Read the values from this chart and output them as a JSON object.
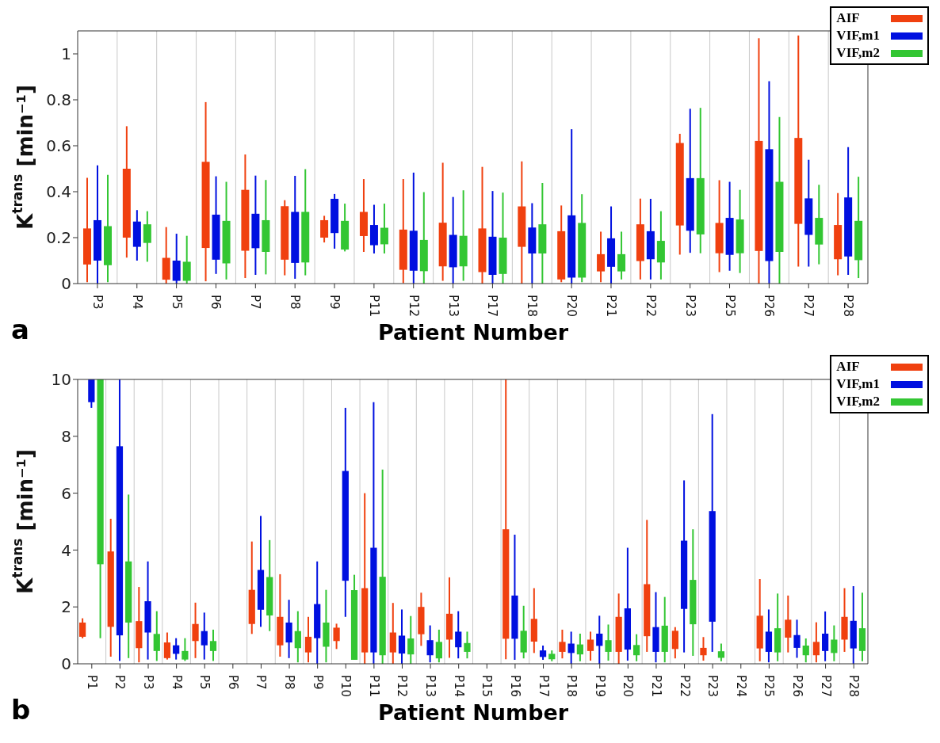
{
  "chart_data": [
    {
      "type": "box",
      "xlabel": "Patient Number",
      "ylabel": "K$^{trans}$ [min⁻¹]",
      "annotations": [
        "a"
      ],
      "legend": "top right",
      "grid": "x",
      "ylim": [
        0,
        1.1
      ],
      "yticks": [
        0,
        0.2,
        0.4,
        0.6,
        0.8,
        1
      ],
      "categories": [
        "P3",
        "P4",
        "P5",
        "P6",
        "P7",
        "P8",
        "P9",
        "P11",
        "P12",
        "P13",
        "P17",
        "P18",
        "P20",
        "P21",
        "P22",
        "P23",
        "P25",
        "P26",
        "P27",
        "P28"
      ],
      "series": [
        {
          "name": "AIF",
          "color": "#f0400f",
          "boxes": [
            {
              "low": 0.006,
              "q1": 0.083,
              "q3": 0.24,
              "high": 0.46
            },
            {
              "low": 0.113,
              "q1": 0.2,
              "q3": 0.5,
              "high": 0.685
            },
            {
              "low": 0,
              "q1": 0.017,
              "q3": 0.112,
              "high": 0.246
            },
            {
              "low": 0.01,
              "q1": 0.155,
              "q3": 0.53,
              "high": 0.79
            },
            {
              "low": 0.024,
              "q1": 0.143,
              "q3": 0.408,
              "high": 0.562
            },
            {
              "low": 0.036,
              "q1": 0.104,
              "q3": 0.337,
              "high": 0.363
            },
            {
              "low": 0.179,
              "q1": 0.2,
              "q3": 0.276,
              "high": 0.295
            },
            {
              "low": 0.138,
              "q1": 0.207,
              "q3": 0.312,
              "high": 0.455
            },
            {
              "low": 0.002,
              "q1": 0.06,
              "q3": 0.235,
              "high": 0.455
            },
            {
              "low": 0.012,
              "q1": 0.075,
              "q3": 0.265,
              "high": 0.526
            },
            {
              "low": 0,
              "q1": 0.05,
              "q3": 0.24,
              "high": 0.508
            },
            {
              "low": 0,
              "q1": 0.16,
              "q3": 0.336,
              "high": 0.532
            },
            {
              "low": 0.006,
              "q1": 0.018,
              "q3": 0.228,
              "high": 0.34
            },
            {
              "low": 0.006,
              "q1": 0.053,
              "q3": 0.128,
              "high": 0.226
            },
            {
              "low": 0.018,
              "q1": 0.098,
              "q3": 0.258,
              "high": 0.37
            },
            {
              "low": 0.126,
              "q1": 0.253,
              "q3": 0.612,
              "high": 0.652
            },
            {
              "low": 0.05,
              "q1": 0.132,
              "q3": 0.264,
              "high": 0.45
            },
            {
              "low": 0,
              "q1": 0.142,
              "q3": 0.621,
              "high": 1.068
            },
            {
              "low": 0.074,
              "q1": 0.26,
              "q3": 0.634,
              "high": 1.08
            },
            {
              "low": 0.036,
              "q1": 0.106,
              "q3": 0.255,
              "high": 0.394
            }
          ]
        },
        {
          "name": "VIF,m1",
          "color": "#0010e0",
          "boxes": [
            {
              "low": 0,
              "q1": 0.1,
              "q3": 0.276,
              "high": 0.515
            },
            {
              "low": 0.1,
              "q1": 0.16,
              "q3": 0.27,
              "high": 0.32
            },
            {
              "low": 0,
              "q1": 0.012,
              "q3": 0.1,
              "high": 0.217
            },
            {
              "low": 0.042,
              "q1": 0.104,
              "q3": 0.3,
              "high": 0.467
            },
            {
              "low": 0.038,
              "q1": 0.154,
              "q3": 0.304,
              "high": 0.47
            },
            {
              "low": 0.021,
              "q1": 0.09,
              "q3": 0.312,
              "high": 0.469
            },
            {
              "low": 0.152,
              "q1": 0.22,
              "q3": 0.369,
              "high": 0.39
            },
            {
              "low": 0.131,
              "q1": 0.167,
              "q3": 0.255,
              "high": 0.343
            },
            {
              "low": 0,
              "q1": 0.056,
              "q3": 0.23,
              "high": 0.483
            },
            {
              "low": 0,
              "q1": 0.071,
              "q3": 0.212,
              "high": 0.377
            },
            {
              "low": 0,
              "q1": 0.038,
              "q3": 0.204,
              "high": 0.403
            },
            {
              "low": 0,
              "q1": 0.131,
              "q3": 0.244,
              "high": 0.35
            },
            {
              "low": 0,
              "q1": 0.026,
              "q3": 0.297,
              "high": 0.672
            },
            {
              "low": 0,
              "q1": 0.073,
              "q3": 0.197,
              "high": 0.336
            },
            {
              "low": 0.018,
              "q1": 0.106,
              "q3": 0.228,
              "high": 0.369
            },
            {
              "low": 0.134,
              "q1": 0.23,
              "q3": 0.459,
              "high": 0.761
            },
            {
              "low": 0.056,
              "q1": 0.125,
              "q3": 0.286,
              "high": 0.443
            },
            {
              "low": 0,
              "q1": 0.098,
              "q3": 0.585,
              "high": 0.881
            },
            {
              "low": 0.074,
              "q1": 0.212,
              "q3": 0.371,
              "high": 0.539
            },
            {
              "low": 0.038,
              "q1": 0.118,
              "q3": 0.375,
              "high": 0.594
            }
          ]
        },
        {
          "name": "VIF,m2",
          "color": "#33c633",
          "boxes": [
            {
              "low": 0.006,
              "q1": 0.08,
              "q3": 0.25,
              "high": 0.473
            },
            {
              "low": 0.095,
              "q1": 0.177,
              "q3": 0.258,
              "high": 0.315
            },
            {
              "low": 0,
              "q1": 0.012,
              "q3": 0.095,
              "high": 0.208
            },
            {
              "low": 0.018,
              "q1": 0.088,
              "q3": 0.273,
              "high": 0.443
            },
            {
              "low": 0.04,
              "q1": 0.138,
              "q3": 0.276,
              "high": 0.451
            },
            {
              "low": 0.036,
              "q1": 0.092,
              "q3": 0.312,
              "high": 0.498
            },
            {
              "low": 0.14,
              "q1": 0.148,
              "q3": 0.273,
              "high": 0.348
            },
            {
              "low": 0.131,
              "q1": 0.171,
              "q3": 0.243,
              "high": 0.348
            },
            {
              "low": 0,
              "q1": 0.054,
              "q3": 0.19,
              "high": 0.398
            },
            {
              "low": 0.012,
              "q1": 0.075,
              "q3": 0.208,
              "high": 0.406
            },
            {
              "low": 0,
              "q1": 0.042,
              "q3": 0.2,
              "high": 0.396
            },
            {
              "low": 0,
              "q1": 0.131,
              "q3": 0.258,
              "high": 0.438
            },
            {
              "low": 0.006,
              "q1": 0.026,
              "q3": 0.264,
              "high": 0.389
            },
            {
              "low": 0.018,
              "q1": 0.053,
              "q3": 0.128,
              "high": 0.226
            },
            {
              "low": 0.018,
              "q1": 0.092,
              "q3": 0.186,
              "high": 0.315
            },
            {
              "low": 0.132,
              "q1": 0.214,
              "q3": 0.459,
              "high": 0.765
            },
            {
              "low": 0.046,
              "q1": 0.132,
              "q3": 0.279,
              "high": 0.408
            },
            {
              "low": 0,
              "q1": 0.138,
              "q3": 0.443,
              "high": 0.725
            },
            {
              "low": 0.084,
              "q1": 0.17,
              "q3": 0.286,
              "high": 0.43
            },
            {
              "low": 0.024,
              "q1": 0.102,
              "q3": 0.273,
              "high": 0.465
            }
          ]
        }
      ]
    },
    {
      "type": "box",
      "xlabel": "Patient Number",
      "ylabel": "K$^{trans}$ [min⁻¹]",
      "annotations": [
        "b"
      ],
      "legend": "top right",
      "grid": "x",
      "ylim": [
        0,
        10
      ],
      "yticks": [
        0,
        2,
        4,
        6,
        8,
        10
      ],
      "categories": [
        "P1",
        "P2",
        "P3",
        "P4",
        "P5",
        "P6",
        "P7",
        "P8",
        "P9",
        "P10",
        "P11",
        "P12",
        "P13",
        "P14",
        "P15",
        "P16",
        "P17",
        "P18",
        "P19",
        "P20",
        "P21",
        "P22",
        "P23",
        "P24",
        "P25",
        "P26",
        "P27",
        "P28"
      ],
      "series": [
        {
          "name": "AIF",
          "color": "#f0400f",
          "boxes": [
            {
              "low": 0.9,
              "q1": 0.95,
              "q3": 1.45,
              "high": 1.6
            },
            {
              "low": 0.25,
              "q1": 1.3,
              "q3": 3.95,
              "high": 5.1
            },
            {
              "low": 0.05,
              "q1": 0.55,
              "q3": 1.5,
              "high": 2.7
            },
            {
              "low": 0.15,
              "q1": 0.2,
              "q3": 0.75,
              "high": 1.1
            },
            {
              "low": 0.2,
              "q1": 0.8,
              "q3": 1.4,
              "high": 2.15
            },
            null,
            {
              "low": 1.05,
              "q1": 1.4,
              "q3": 2.6,
              "high": 4.3
            },
            {
              "low": 0.25,
              "q1": 0.65,
              "q3": 1.65,
              "high": 3.15
            },
            {
              "low": 0.05,
              "q1": 0.4,
              "q3": 0.95,
              "high": 1.65
            },
            {
              "low": 0.52,
              "q1": 0.8,
              "q3": 1.27,
              "high": 1.41
            },
            {
              "low": 0,
              "q1": 0.4,
              "q3": 2.66,
              "high": 6.0
            },
            {
              "low": 0,
              "q1": 0.4,
              "q3": 1.1,
              "high": 2.14
            },
            {
              "low": 0.63,
              "q1": 1.04,
              "q3": 2.0,
              "high": 2.5
            },
            {
              "low": 0.21,
              "q1": 0.85,
              "q3": 1.76,
              "high": 3.04
            },
            null,
            {
              "low": 0.16,
              "q1": 0.88,
              "q3": 4.73,
              "high": 10
            },
            {
              "low": 0.38,
              "q1": 0.78,
              "q3": 1.58,
              "high": 2.66
            },
            {
              "low": 0.19,
              "q1": 0.42,
              "q3": 0.77,
              "high": 1.2
            },
            {
              "low": 0.11,
              "q1": 0.45,
              "q3": 0.85,
              "high": 1.13
            },
            {
              "low": 0,
              "q1": 0.42,
              "q3": 1.65,
              "high": 2.47
            },
            {
              "low": 0.42,
              "q1": 0.97,
              "q3": 2.8,
              "high": 5.06
            },
            {
              "low": 0.19,
              "q1": 0.52,
              "q3": 1.16,
              "high": 1.29
            },
            {
              "low": 0.11,
              "q1": 0.3,
              "q3": 0.56,
              "high": 0.94
            },
            null,
            {
              "low": 0.09,
              "q1": 0.54,
              "q3": 1.69,
              "high": 2.98
            },
            {
              "low": 0.4,
              "q1": 0.92,
              "q3": 1.55,
              "high": 2.4
            },
            {
              "low": 0.05,
              "q1": 0.3,
              "q3": 0.77,
              "high": 1.46
            },
            {
              "low": 0.42,
              "q1": 0.85,
              "q3": 1.65,
              "high": 2.66
            }
          ]
        },
        {
          "name": "VIF,m1",
          "color": "#0010e0",
          "boxes": [
            {
              "low": 9.0,
              "q1": 9.2,
              "q3": 10,
              "high": 10
            },
            {
              "low": 0.1,
              "q1": 1.0,
              "q3": 7.65,
              "high": 10
            },
            {
              "low": 0.15,
              "q1": 1.1,
              "q3": 2.2,
              "high": 3.6
            },
            {
              "low": 0.15,
              "q1": 0.35,
              "q3": 0.65,
              "high": 0.9
            },
            {
              "low": 0.15,
              "q1": 0.65,
              "q3": 1.15,
              "high": 1.8
            },
            null,
            {
              "low": 1.3,
              "q1": 1.9,
              "q3": 3.3,
              "high": 5.2
            },
            {
              "low": 0.2,
              "q1": 0.75,
              "q3": 1.45,
              "high": 2.25
            },
            {
              "low": 0,
              "q1": 0.9,
              "q3": 2.1,
              "high": 3.6
            },
            {
              "low": 1.65,
              "q1": 2.92,
              "q3": 6.78,
              "high": 9.0
            },
            {
              "low": 0,
              "q1": 0.4,
              "q3": 4.08,
              "high": 9.2
            },
            {
              "low": 0,
              "q1": 0.36,
              "q3": 0.99,
              "high": 1.91
            },
            {
              "low": 0.05,
              "q1": 0.3,
              "q3": 0.83,
              "high": 1.35
            },
            {
              "low": 0.19,
              "q1": 0.58,
              "q3": 1.13,
              "high": 1.85
            },
            null,
            {
              "low": 0.14,
              "q1": 0.88,
              "q3": 2.4,
              "high": 4.54
            },
            {
              "low": 0.14,
              "q1": 0.24,
              "q3": 0.47,
              "high": 0.64
            },
            {
              "low": 0,
              "q1": 0.38,
              "q3": 0.71,
              "high": 1.13
            },
            {
              "low": 0,
              "q1": 0.63,
              "q3": 1.06,
              "high": 1.69
            },
            {
              "low": 0.11,
              "q1": 0.5,
              "q3": 1.95,
              "high": 4.08
            },
            {
              "low": 0.05,
              "q1": 0.42,
              "q3": 1.29,
              "high": 2.52
            },
            {
              "low": 0.4,
              "q1": 1.93,
              "q3": 4.33,
              "high": 6.45
            },
            {
              "low": 0.42,
              "q1": 1.48,
              "q3": 5.37,
              "high": 8.78
            },
            null,
            {
              "low": 0.05,
              "q1": 0.42,
              "q3": 1.13,
              "high": 1.91
            },
            {
              "low": 0.21,
              "q1": 0.56,
              "q3": 1.01,
              "high": 1.55
            },
            {
              "low": 0.09,
              "q1": 0.45,
              "q3": 1.06,
              "high": 1.84
            },
            {
              "low": 0,
              "q1": 0.54,
              "q3": 1.51,
              "high": 2.73
            }
          ]
        },
        {
          "name": "VIF,m2",
          "color": "#33c633",
          "boxes": [
            {
              "low": 0.9,
              "q1": 3.5,
              "q3": 10,
              "high": 10
            },
            {
              "low": 0.2,
              "q1": 1.45,
              "q3": 3.6,
              "high": 5.95
            },
            {
              "low": 0.1,
              "q1": 0.45,
              "q3": 1.05,
              "high": 1.85
            },
            {
              "low": 0.1,
              "q1": 0.15,
              "q3": 0.45,
              "high": 0.9
            },
            {
              "low": 0.1,
              "q1": 0.45,
              "q3": 0.8,
              "high": 1.2
            },
            null,
            {
              "low": 1.15,
              "q1": 1.7,
              "q3": 3.05,
              "high": 4.35
            },
            {
              "low": 0.05,
              "q1": 0.55,
              "q3": 1.15,
              "high": 1.85
            },
            {
              "low": 0.05,
              "q1": 0.6,
              "q3": 1.45,
              "high": 2.6
            },
            {
              "low": 0.14,
              "q1": 0.14,
              "q3": 2.59,
              "high": 3.13
            },
            {
              "low": 0,
              "q1": 0.3,
              "q3": 3.06,
              "high": 6.83
            },
            {
              "low": 0,
              "q1": 0.33,
              "q3": 0.89,
              "high": 1.68
            },
            {
              "low": 0.05,
              "q1": 0.19,
              "q3": 0.77,
              "high": 1.2
            },
            {
              "low": 0.19,
              "q1": 0.42,
              "q3": 0.73,
              "high": 1.13
            },
            null,
            {
              "low": 0.19,
              "q1": 0.4,
              "q3": 1.16,
              "high": 2.04
            },
            {
              "low": 0.09,
              "q1": 0.16,
              "q3": 0.35,
              "high": 0.47
            },
            {
              "low": 0.09,
              "q1": 0.33,
              "q3": 0.68,
              "high": 1.06
            },
            {
              "low": 0.11,
              "q1": 0.42,
              "q3": 0.83,
              "high": 1.38
            },
            {
              "low": 0.09,
              "q1": 0.3,
              "q3": 0.66,
              "high": 1.04
            },
            {
              "low": 0.05,
              "q1": 0.42,
              "q3": 1.34,
              "high": 2.35
            },
            {
              "low": 0.28,
              "q1": 1.39,
              "q3": 2.95,
              "high": 4.73
            },
            {
              "low": 0.09,
              "q1": 0.21,
              "q3": 0.44,
              "high": 0.71
            },
            null,
            {
              "low": 0.09,
              "q1": 0.4,
              "q3": 1.25,
              "high": 2.47
            },
            {
              "low": 0.05,
              "q1": 0.3,
              "q3": 0.64,
              "high": 0.89
            },
            {
              "low": 0.09,
              "q1": 0.38,
              "q3": 0.85,
              "high": 1.35
            },
            {
              "low": 0.09,
              "q1": 0.45,
              "q3": 1.25,
              "high": 2.5
            }
          ]
        }
      ]
    }
  ]
}
